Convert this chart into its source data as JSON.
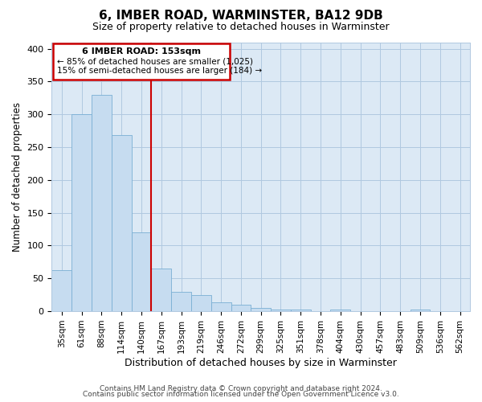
{
  "title": "6, IMBER ROAD, WARMINSTER, BA12 9DB",
  "subtitle": "Size of property relative to detached houses in Warminster",
  "xlabel": "Distribution of detached houses by size in Warminster",
  "ylabel": "Number of detached properties",
  "bar_labels": [
    "35sqm",
    "61sqm",
    "88sqm",
    "114sqm",
    "140sqm",
    "167sqm",
    "193sqm",
    "219sqm",
    "246sqm",
    "272sqm",
    "299sqm",
    "325sqm",
    "351sqm",
    "378sqm",
    "404sqm",
    "430sqm",
    "457sqm",
    "483sqm",
    "509sqm",
    "536sqm",
    "562sqm"
  ],
  "bar_heights": [
    63,
    300,
    330,
    268,
    120,
    65,
    29,
    25,
    13,
    10,
    5,
    2,
    2,
    0,
    2,
    0,
    0,
    0,
    2,
    0,
    0
  ],
  "bar_color": "#c6dcf0",
  "bar_edge_color": "#7aafd4",
  "vline_label": "6 IMBER ROAD: 153sqm",
  "annotation_line1": "← 85% of detached houses are smaller (1,025)",
  "annotation_line2": "15% of semi-detached houses are larger (184) →",
  "annotation_box_color": "#ffffff",
  "annotation_box_edge": "#cc0000",
  "vline_color": "#cc0000",
  "ylim": [
    0,
    410
  ],
  "yticks": [
    0,
    50,
    100,
    150,
    200,
    250,
    300,
    350,
    400
  ],
  "footer1": "Contains HM Land Registry data © Crown copyright and database right 2024.",
  "footer2": "Contains public sector information licensed under the Open Government Licence v3.0.",
  "background_color": "#ffffff",
  "plot_bg_color": "#dce9f5",
  "grid_color": "#b0c8e0"
}
